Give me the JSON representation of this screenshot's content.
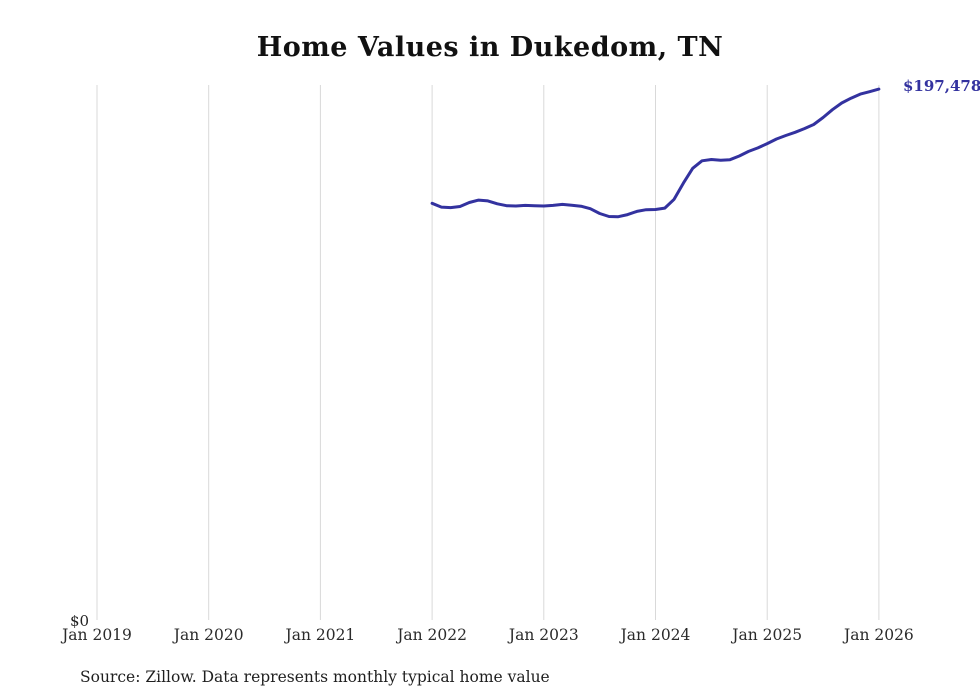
{
  "chart_data": {
    "type": "line",
    "title": "Home Values in Dukedom, TN",
    "source": "Source: Zillow. Data represents monthly typical home value",
    "end_label": "$197,478",
    "end_value": 197478,
    "y_zero_label": "$0",
    "line_color": "#33329F",
    "gridline_color": "#D9D9D9",
    "grid": "vertical-only",
    "legend": "none",
    "ylim": [
      0,
      199000
    ],
    "x_ticks": [
      "Jan 2019",
      "Jan 2020",
      "Jan 2021",
      "Jan 2022",
      "Jan 2023",
      "Jan 2024",
      "Jan 2025",
      "Jan 2026"
    ],
    "series": [
      {
        "name": "Typical home value",
        "x": [
          "2022-01",
          "2022-02",
          "2022-03",
          "2022-04",
          "2022-05",
          "2022-06",
          "2022-07",
          "2022-08",
          "2022-09",
          "2022-10",
          "2022-11",
          "2022-12",
          "2023-01",
          "2023-02",
          "2023-03",
          "2023-04",
          "2023-05",
          "2023-06",
          "2023-07",
          "2023-08",
          "2023-09",
          "2023-10",
          "2023-11",
          "2023-12",
          "2024-01",
          "2024-02",
          "2024-03",
          "2024-04",
          "2024-05",
          "2024-06",
          "2024-07",
          "2024-08",
          "2024-09",
          "2024-10",
          "2024-11",
          "2024-12",
          "2025-01",
          "2025-02",
          "2025-03",
          "2025-04",
          "2025-05",
          "2025-06",
          "2025-07",
          "2025-08",
          "2025-09",
          "2025-10",
          "2025-11",
          "2025-12",
          "2026-01"
        ],
        "values": [
          155000,
          153600,
          153400,
          153800,
          155300,
          156200,
          155900,
          154800,
          154100,
          154000,
          154200,
          154100,
          154000,
          154200,
          154600,
          154300,
          153900,
          153000,
          151200,
          150100,
          150000,
          150800,
          152000,
          152600,
          152700,
          153200,
          156500,
          162500,
          168000,
          170800,
          171300,
          171000,
          171200,
          172600,
          174300,
          175600,
          177200,
          178900,
          180200,
          181400,
          182800,
          184300,
          186900,
          189800,
          192300,
          194100,
          195600,
          196500,
          197478
        ]
      }
    ]
  }
}
